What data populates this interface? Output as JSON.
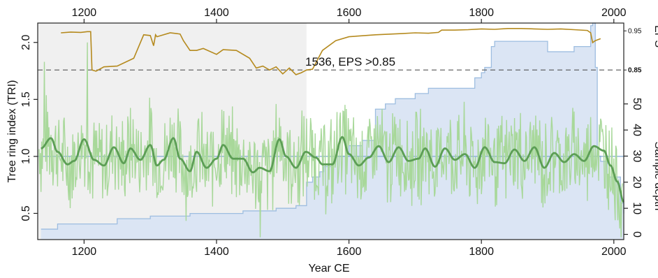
{
  "chart_data": {
    "type": "line",
    "xlabel": "Year CE",
    "ylabel": "Tree ring index (TRI)",
    "right_label_top": "EPS",
    "right_label_bottom": "Sample depth",
    "annotation": "1536, EPS >0.85",
    "x_ticks": [
      "1200",
      "1400",
      "1600",
      "1800",
      "2000"
    ],
    "top_x_ticks": [
      "1200",
      "1400",
      "1600",
      "1800",
      "2000"
    ],
    "y_ticks": [
      "0.5",
      "1.0",
      "1.5",
      "2.0"
    ],
    "sample_depth_ticks": [
      "0",
      "10",
      "20",
      "30",
      "40",
      "50"
    ],
    "eps_ticks": [
      "0.95",
      "0.85"
    ],
    "xlim": [
      1130,
      2015
    ],
    "ylim": [
      0.27,
      2.17
    ],
    "sample_depth_lim": [
      -2,
      81
    ],
    "eps_lim": [
      0.82,
      0.97
    ],
    "eps_threshold": 0.85,
    "eps_threshold_year": 1536,
    "grid": false,
    "shaded_region": [
      1130,
      1536
    ],
    "colors": {
      "tri": "#a8d89a",
      "spline": "#5c9e55",
      "depth_fill": "#dbe5f4",
      "depth_line": "#9dbde0",
      "eps": "#b58a1e",
      "threshold": "#555555",
      "shade": "#f0f0f0",
      "mean": "#7fa8d0"
    },
    "series": [
      {
        "kind": "sample_depth",
        "x": [
          1135,
          1145,
          1160,
          1190,
          1250,
          1280,
          1300,
          1340,
          1360,
          1380,
          1440,
          1490,
          1520,
          1536,
          1545,
          1556,
          1562,
          1575,
          1580,
          1600,
          1620,
          1640,
          1655,
          1670,
          1700,
          1720,
          1750,
          1790,
          1800,
          1805,
          1815,
          1820,
          1900,
          1918,
          1940,
          1965,
          1968,
          1972,
          1975,
          1980,
          1990,
          2010,
          2015
        ],
        "values": [
          2,
          2,
          4,
          4,
          6,
          6,
          7,
          7,
          8,
          8,
          9,
          10,
          11,
          20,
          22,
          24,
          26,
          28,
          30,
          34,
          36,
          48,
          50,
          52,
          54,
          56,
          56,
          60,
          62,
          64,
          72,
          74,
          70,
          70,
          72,
          80,
          81,
          64,
          30,
          28,
          22,
          12,
          8
        ]
      },
      {
        "kind": "eps",
        "x": [
          1165,
          1180,
          1195,
          1205,
          1210,
          1212,
          1218,
          1230,
          1250,
          1265,
          1275,
          1290,
          1300,
          1305,
          1308,
          1310,
          1330,
          1345,
          1350,
          1360,
          1370,
          1380,
          1400,
          1410,
          1430,
          1450,
          1460,
          1470,
          1480,
          1490,
          1500,
          1510,
          1520,
          1528,
          1536,
          1545,
          1560,
          1580,
          1600,
          1640,
          1680,
          1700,
          1720,
          1735,
          1740,
          1760,
          1780,
          1800,
          1820,
          1840,
          1860,
          1880,
          1900,
          1920,
          1940,
          1960,
          1965,
          1968,
          1972,
          1980
        ],
        "values": [
          0.945,
          0.947,
          0.946,
          0.948,
          0.948,
          0.85,
          0.847,
          0.858,
          0.86,
          0.872,
          0.88,
          0.94,
          0.938,
          0.912,
          0.94,
          0.935,
          0.945,
          0.942,
          0.925,
          0.9,
          0.9,
          0.905,
          0.89,
          0.902,
          0.9,
          0.88,
          0.855,
          0.86,
          0.85,
          0.858,
          0.84,
          0.855,
          0.838,
          0.843,
          0.85,
          0.852,
          0.9,
          0.925,
          0.935,
          0.94,
          0.943,
          0.945,
          0.944,
          0.946,
          0.952,
          0.952,
          0.953,
          0.955,
          0.954,
          0.956,
          0.956,
          0.955,
          0.954,
          0.955,
          0.953,
          0.951,
          0.945,
          0.92,
          0.925,
          0.93
        ]
      },
      {
        "kind": "spline",
        "x": [
          1135,
          1150,
          1160,
          1175,
          1185,
          1200,
          1215,
          1230,
          1245,
          1260,
          1270,
          1285,
          1300,
          1310,
          1320,
          1335,
          1345,
          1360,
          1370,
          1385,
          1400,
          1410,
          1425,
          1440,
          1455,
          1465,
          1480,
          1495,
          1505,
          1520,
          1535,
          1550,
          1560,
          1575,
          1590,
          1600,
          1615,
          1630,
          1645,
          1660,
          1675,
          1690,
          1705,
          1715,
          1730,
          1745,
          1760,
          1775,
          1790,
          1805,
          1820,
          1835,
          1850,
          1865,
          1880,
          1895,
          1910,
          1925,
          1940,
          1955,
          1970,
          1985,
          1995,
          2005,
          2015
        ],
        "values": [
          1.07,
          1.16,
          1.04,
          0.93,
          0.96,
          1.15,
          0.97,
          0.92,
          1.08,
          0.94,
          1.07,
          0.97,
          1.1,
          0.92,
          0.97,
          1.16,
          0.98,
          0.87,
          1.04,
          0.9,
          0.98,
          1.1,
          0.98,
          0.98,
          0.86,
          0.9,
          0.87,
          1.15,
          1.0,
          0.9,
          1.04,
          0.99,
          0.93,
          0.93,
          1.17,
          1.02,
          0.92,
          0.99,
          1.09,
          0.95,
          1.08,
          0.96,
          0.98,
          1.07,
          0.91,
          1.07,
          0.97,
          1.02,
          0.9,
          1.08,
          0.95,
          0.94,
          1.06,
          0.96,
          1.08,
          0.9,
          1.03,
          0.95,
          1.02,
          0.96,
          1.09,
          1.05,
          0.92,
          0.78,
          0.6
        ]
      }
    ],
    "tri_noise": {
      "center": 1.0,
      "amplitude": 0.42,
      "outliers": [
        {
          "x": 1205,
          "y": 2.0
        },
        {
          "x": 1466,
          "y": 0.29
        },
        {
          "x": 1140,
          "y": 1.83
        }
      ]
    }
  }
}
